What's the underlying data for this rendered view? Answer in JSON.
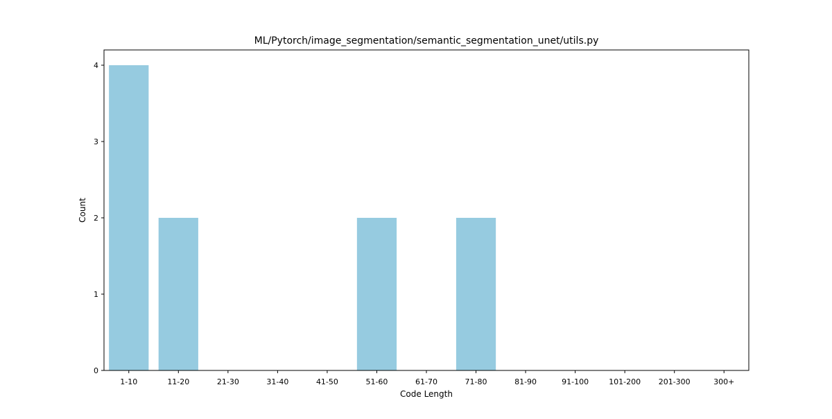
{
  "chart_data": {
    "type": "bar",
    "title": "ML/Pytorch/image_segmentation/semantic_segmentation_unet/utils.py",
    "xlabel": "Code Length",
    "ylabel": "Count",
    "categories": [
      "1-10",
      "11-20",
      "21-30",
      "31-40",
      "41-50",
      "51-60",
      "61-70",
      "71-80",
      "81-90",
      "91-100",
      "101-200",
      "201-300",
      "300+"
    ],
    "values": [
      4,
      2,
      0,
      0,
      0,
      2,
      0,
      2,
      0,
      0,
      0,
      0,
      0
    ],
    "ylim": [
      0,
      4.2
    ],
    "yticks": [
      0,
      1,
      2,
      3,
      4
    ],
    "grid": false,
    "legend": false,
    "colors": {
      "bar": "#96cbe0",
      "axis": "#000000"
    }
  }
}
